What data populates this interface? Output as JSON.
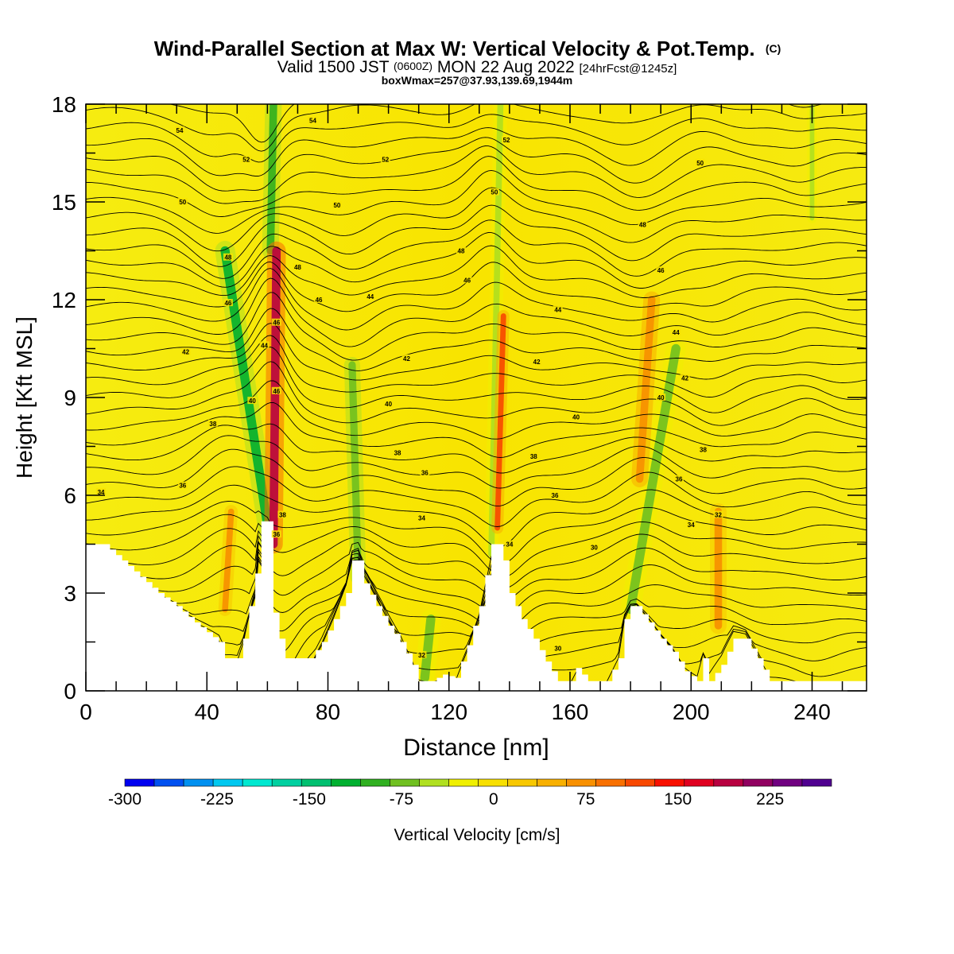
{
  "header": {
    "title": "Wind-Parallel Section at Max W: Vertical Velocity & Pot.Temp.",
    "copyright": "(C)",
    "subtitle_a": "Valid 1500 JST",
    "subtitle_b": "(0600Z)",
    "subtitle_c": "MON 22 Aug 2022",
    "subtitle_d": "[24hrFcst@1245z]",
    "subtitle2": "boxWmax=257@37.93,139.69,1944m"
  },
  "chart_data": {
    "type": "heatmap",
    "xlabel": "Distance [nm]",
    "ylabel": "Height [Kft MSL]",
    "xlim": [
      0,
      258
    ],
    "ylim": [
      0,
      18
    ],
    "x_ticks": [
      0,
      40,
      80,
      120,
      160,
      200,
      240
    ],
    "y_ticks": [
      0,
      3,
      6,
      9,
      12,
      15,
      18
    ],
    "colorbar": {
      "label": "Vertical Velocity [cm/s]",
      "min": -300,
      "max": 275,
      "tick_labels": [
        "-300",
        "-225",
        "-150",
        "-75",
        "0",
        "75",
        "150",
        "225"
      ],
      "tick_values": [
        -300,
        -225,
        -150,
        -75,
        0,
        75,
        150,
        225
      ],
      "colors": [
        "#0000f0",
        "#0050f0",
        "#0090f0",
        "#00c8f0",
        "#00e8d0",
        "#00d0a0",
        "#00c070",
        "#00b030",
        "#30b020",
        "#70c020",
        "#b0e020",
        "#f0f000",
        "#f8e000",
        "#f8c800",
        "#f8b000",
        "#f89000",
        "#f87000",
        "#f84800",
        "#f81000",
        "#e00020",
        "#b80040",
        "#900060",
        "#700080",
        "#500090"
      ]
    },
    "terrain_profile": [
      [
        0,
        4.5
      ],
      [
        6,
        4.5
      ],
      [
        12,
        4.0
      ],
      [
        18,
        3.5
      ],
      [
        24,
        3.0
      ],
      [
        30,
        2.6
      ],
      [
        36,
        2.1
      ],
      [
        40,
        1.8
      ],
      [
        44,
        1.5
      ],
      [
        46,
        1.0
      ],
      [
        50,
        1.0
      ],
      [
        52,
        1.6
      ],
      [
        54,
        2.6
      ],
      [
        56,
        3.6
      ],
      [
        57,
        5.2
      ],
      [
        60,
        5.2
      ],
      [
        61,
        3.2
      ],
      [
        62,
        2.4
      ],
      [
        64,
        1.6
      ],
      [
        66,
        1.0
      ],
      [
        70,
        1.0
      ],
      [
        74,
        1.0
      ],
      [
        78,
        1.5
      ],
      [
        82,
        2.2
      ],
      [
        86,
        3.0
      ],
      [
        88,
        4.0
      ],
      [
        90,
        4.0
      ],
      [
        92,
        3.3
      ],
      [
        96,
        2.6
      ],
      [
        100,
        2.0
      ],
      [
        104,
        1.5
      ],
      [
        108,
        0.8
      ],
      [
        110,
        0.3
      ],
      [
        114,
        0.3
      ],
      [
        118,
        0.5
      ],
      [
        122,
        0.4
      ],
      [
        126,
        1.4
      ],
      [
        130,
        2.6
      ],
      [
        134,
        4.5
      ],
      [
        137,
        4.5
      ],
      [
        140,
        3.0
      ],
      [
        144,
        2.2
      ],
      [
        148,
        1.6
      ],
      [
        152,
        0.9
      ],
      [
        156,
        0.3
      ],
      [
        160,
        0.3
      ],
      [
        162,
        0.7
      ],
      [
        166,
        0.3
      ],
      [
        172,
        0.3
      ],
      [
        176,
        1.0
      ],
      [
        178,
        2.2
      ],
      [
        180,
        2.6
      ],
      [
        182,
        2.6
      ],
      [
        186,
        2.1
      ],
      [
        190,
        1.6
      ],
      [
        194,
        1.2
      ],
      [
        198,
        0.6
      ],
      [
        202,
        0.3
      ],
      [
        204,
        1.0
      ],
      [
        206,
        0.3
      ],
      [
        210,
        0.8
      ],
      [
        214,
        1.6
      ],
      [
        218,
        1.6
      ],
      [
        222,
        1.0
      ],
      [
        226,
        0.3
      ],
      [
        232,
        0.3
      ],
      [
        236,
        0.3
      ],
      [
        240,
        0.3
      ],
      [
        246,
        0.3
      ],
      [
        252,
        0.3
      ],
      [
        258,
        0.3
      ]
    ],
    "updraft_bands": [
      {
        "name": "updraft",
        "x0": 62,
        "y0": 4.5,
        "x1": 63,
        "y1": 13.5,
        "w": 2.8,
        "value": 200
      },
      {
        "name": "updraft",
        "x0": 136,
        "y0": 5.0,
        "x1": 138,
        "y1": 11.5,
        "w": 1.8,
        "value": 110
      },
      {
        "name": "updraft",
        "x0": 183,
        "y0": 6.5,
        "x1": 187,
        "y1": 12.0,
        "w": 2.5,
        "value": 75
      },
      {
        "name": "updraft",
        "x0": 209,
        "y0": 2.0,
        "x1": 209,
        "y1": 5.5,
        "w": 2.5,
        "value": 70
      },
      {
        "name": "updraft",
        "x0": 46,
        "y0": 2.5,
        "x1": 48,
        "y1": 5.5,
        "w": 2.0,
        "value": 60
      }
    ],
    "downdraft_bands": [
      {
        "name": "downdraft",
        "x0": 61,
        "y0": 4.5,
        "x1": 46,
        "y1": 13.5,
        "w": 3.0,
        "value": -110
      },
      {
        "name": "downdraft",
        "x0": 61,
        "y0": 13.5,
        "x1": 62,
        "y1": 18,
        "w": 2.5,
        "value": -90
      },
      {
        "name": "downdraft",
        "x0": 90,
        "y0": 3.5,
        "x1": 88,
        "y1": 10,
        "w": 2.4,
        "value": -75
      },
      {
        "name": "downdraft",
        "x0": 134,
        "y0": 4.2,
        "x1": 137,
        "y1": 18,
        "w": 2.0,
        "value": -60
      },
      {
        "name": "downdraft",
        "x0": 180,
        "y0": 2.5,
        "x1": 195,
        "y1": 10.5,
        "w": 3.0,
        "value": -70
      },
      {
        "name": "downdraft",
        "x0": 240,
        "y0": 14.5,
        "x1": 240,
        "y1": 18,
        "w": 1.5,
        "value": -60
      },
      {
        "name": "downdraft",
        "x0": 112,
        "y0": 0.4,
        "x1": 114,
        "y1": 2.2,
        "w": 3.0,
        "value": -70
      }
    ],
    "contour_labels": [
      {
        "x": 31,
        "y": 17.2,
        "text": "54"
      },
      {
        "x": 53,
        "y": 16.3,
        "text": "52"
      },
      {
        "x": 32,
        "y": 15.0,
        "text": "50"
      },
      {
        "x": 47,
        "y": 13.3,
        "text": "48"
      },
      {
        "x": 47,
        "y": 11.9,
        "text": "46"
      },
      {
        "x": 33,
        "y": 10.4,
        "text": "42"
      },
      {
        "x": 55,
        "y": 8.9,
        "text": "40"
      },
      {
        "x": 42,
        "y": 8.2,
        "text": "38"
      },
      {
        "x": 32,
        "y": 6.3,
        "text": "36"
      },
      {
        "x": 5,
        "y": 6.1,
        "text": "34"
      },
      {
        "x": 59,
        "y": 10.6,
        "text": "44"
      },
      {
        "x": 63,
        "y": 11.3,
        "text": "46"
      },
      {
        "x": 63,
        "y": 9.2,
        "text": "46"
      },
      {
        "x": 65,
        "y": 5.4,
        "text": "38"
      },
      {
        "x": 63,
        "y": 4.8,
        "text": "36"
      },
      {
        "x": 75,
        "y": 17.5,
        "text": "54"
      },
      {
        "x": 99,
        "y": 16.3,
        "text": "52"
      },
      {
        "x": 83,
        "y": 14.9,
        "text": "50"
      },
      {
        "x": 70,
        "y": 13.0,
        "text": "48"
      },
      {
        "x": 77,
        "y": 12.0,
        "text": "46"
      },
      {
        "x": 94,
        "y": 12.1,
        "text": "44"
      },
      {
        "x": 106,
        "y": 10.2,
        "text": "42"
      },
      {
        "x": 100,
        "y": 8.8,
        "text": "40"
      },
      {
        "x": 103,
        "y": 7.3,
        "text": "38"
      },
      {
        "x": 112,
        "y": 6.7,
        "text": "36"
      },
      {
        "x": 111,
        "y": 5.3,
        "text": "34"
      },
      {
        "x": 111,
        "y": 1.1,
        "text": "32"
      },
      {
        "x": 139,
        "y": 16.9,
        "text": "52"
      },
      {
        "x": 135,
        "y": 15.3,
        "text": "50"
      },
      {
        "x": 124,
        "y": 13.5,
        "text": "48"
      },
      {
        "x": 126,
        "y": 12.6,
        "text": "46"
      },
      {
        "x": 156,
        "y": 11.7,
        "text": "44"
      },
      {
        "x": 149,
        "y": 10.1,
        "text": "42"
      },
      {
        "x": 162,
        "y": 8.4,
        "text": "40"
      },
      {
        "x": 148,
        "y": 7.2,
        "text": "38"
      },
      {
        "x": 155,
        "y": 6.0,
        "text": "36"
      },
      {
        "x": 140,
        "y": 4.5,
        "text": "34"
      },
      {
        "x": 168,
        "y": 4.4,
        "text": "30"
      },
      {
        "x": 156,
        "y": 1.3,
        "text": "30"
      },
      {
        "x": 203,
        "y": 16.2,
        "text": "50"
      },
      {
        "x": 184,
        "y": 14.3,
        "text": "48"
      },
      {
        "x": 190,
        "y": 12.9,
        "text": "46"
      },
      {
        "x": 195,
        "y": 11.0,
        "text": "44"
      },
      {
        "x": 198,
        "y": 9.6,
        "text": "42"
      },
      {
        "x": 190,
        "y": 9.0,
        "text": "40"
      },
      {
        "x": 204,
        "y": 7.4,
        "text": "38"
      },
      {
        "x": 196,
        "y": 6.5,
        "text": "36"
      },
      {
        "x": 200,
        "y": 5.1,
        "text": "34"
      },
      {
        "x": 209,
        "y": 5.4,
        "text": "32"
      }
    ]
  }
}
